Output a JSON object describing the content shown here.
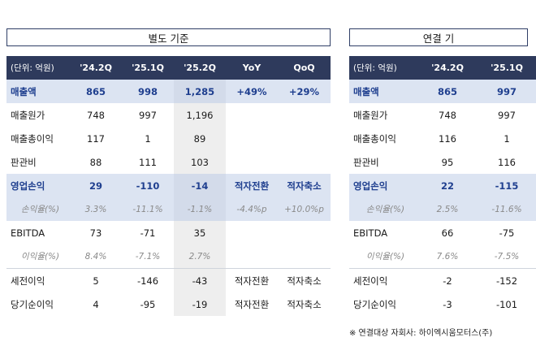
{
  "left": {
    "title": "별도 기준",
    "headers": [
      "(단위: 억원)",
      "'24.2Q",
      "'25.1Q",
      "'25.2Q",
      "YoY",
      "QoQ"
    ],
    "rows": [
      {
        "label": "매출액",
        "values": [
          "865",
          "998",
          "1,285",
          "+49%",
          "+29%"
        ],
        "type": "hl"
      },
      {
        "label": "매출원가",
        "values": [
          "748",
          "997",
          "1,196",
          "",
          ""
        ],
        "type": "normal"
      },
      {
        "label": "매출총이익",
        "values": [
          "117",
          "1",
          "89",
          "",
          ""
        ],
        "type": "normal"
      },
      {
        "label": "판관비",
        "values": [
          "88",
          "111",
          "103",
          "",
          ""
        ],
        "type": "normal"
      },
      {
        "label": "영업손익",
        "values": [
          "29",
          "-110",
          "-14",
          "적자전환",
          "적자축소"
        ],
        "type": "hl"
      },
      {
        "label": "손익율(%)",
        "values": [
          "3.3%",
          "-11.1%",
          "-1.1%",
          "-4.4%p",
          "+10.0%p"
        ],
        "type": "ratio-hl"
      },
      {
        "label": "EBITDA",
        "values": [
          "73",
          "-71",
          "35",
          "",
          ""
        ],
        "type": "normal"
      },
      {
        "label": "이익율(%)",
        "values": [
          "8.4%",
          "-7.1%",
          "2.7%",
          "",
          ""
        ],
        "type": "ratio"
      },
      {
        "label": "세전이익",
        "values": [
          "5",
          "-146",
          "-43",
          "적자전환",
          "적자축소"
        ],
        "type": "sep"
      },
      {
        "label": "당기순이익",
        "values": [
          "4",
          "-95",
          "-19",
          "적자전환",
          "적자축소"
        ],
        "type": "normal"
      }
    ]
  },
  "right": {
    "title": "연결 기",
    "headers": [
      "(단위: 억원)",
      "'24.2Q",
      "'25.1Q"
    ],
    "rows": [
      {
        "label": "매출액",
        "values": [
          "865",
          "997"
        ],
        "type": "hl"
      },
      {
        "label": "매출원가",
        "values": [
          "748",
          "997"
        ],
        "type": "normal"
      },
      {
        "label": "매출총이익",
        "values": [
          "116",
          "1"
        ],
        "type": "normal"
      },
      {
        "label": "판관비",
        "values": [
          "95",
          "116"
        ],
        "type": "normal"
      },
      {
        "label": "영업손익",
        "values": [
          "22",
          "-115"
        ],
        "type": "hl"
      },
      {
        "label": "손익율(%)",
        "values": [
          "2.5%",
          "-11.6%"
        ],
        "type": "ratio-hl"
      },
      {
        "label": "EBITDA",
        "values": [
          "66",
          "-75"
        ],
        "type": "normal"
      },
      {
        "label": "이익율(%)",
        "values": [
          "7.6%",
          "-7.5%"
        ],
        "type": "ratio"
      },
      {
        "label": "세전이익",
        "values": [
          "-2",
          "-152"
        ],
        "type": "sep"
      },
      {
        "label": "당기순이익",
        "values": [
          "-3",
          "-101"
        ],
        "type": "normal"
      }
    ],
    "footnote": "※ 연결대상 자회사: 하이엑시움모터스(주)"
  }
}
